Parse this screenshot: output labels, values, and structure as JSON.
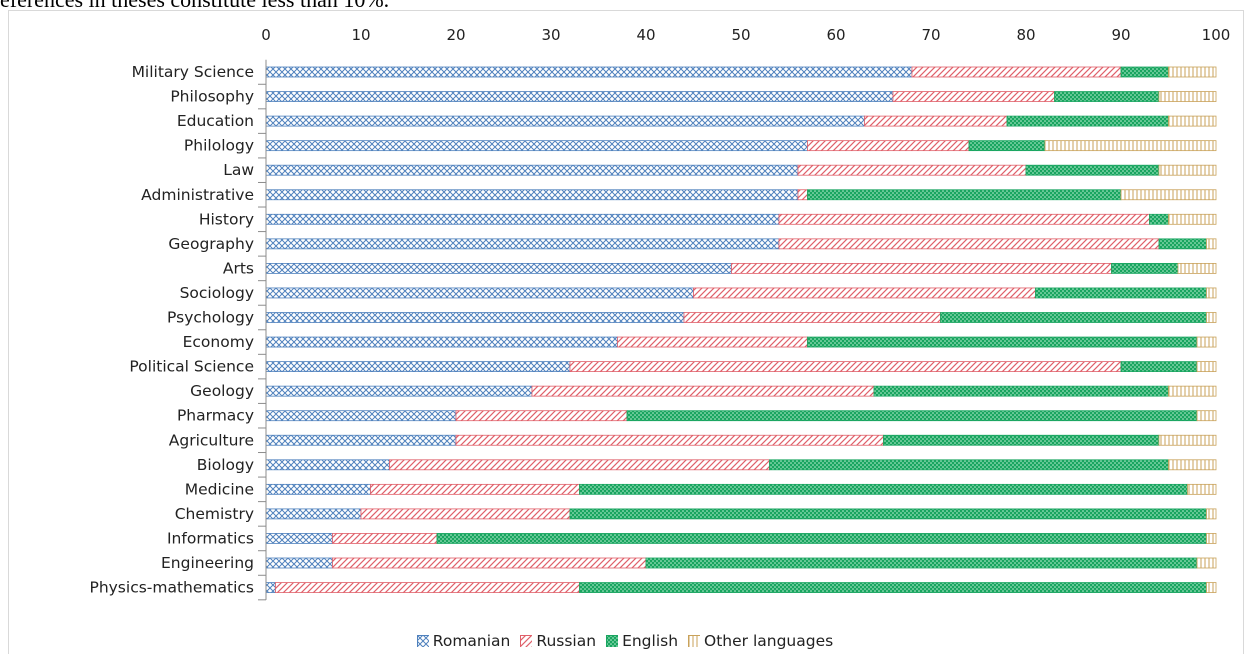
{
  "caption_fragment": "eferences in theses constitute less than 10%.",
  "colors": {
    "romanian": "#4f81bd",
    "russian": "#e0606a",
    "english": "#19a560",
    "other": "#c9a25a"
  },
  "chart_data": {
    "type": "bar",
    "orientation": "horizontal",
    "stacked": true,
    "title": "",
    "xlabel": "",
    "ylabel": "",
    "xlim": [
      0,
      100
    ],
    "x_ticks": [
      "0",
      "10",
      "20",
      "30",
      "40",
      "50",
      "60",
      "70",
      "80",
      "90",
      "100"
    ],
    "x_axis_position": "top",
    "grid": false,
    "legend_position": "bottom-center",
    "categories": [
      "Military Science",
      "Philosophy",
      "Education",
      "Philology",
      "Law",
      "Administrative",
      "History",
      "Geography",
      "Arts",
      "Sociology",
      "Psychology",
      "Economy",
      "Political Science",
      "Geology",
      "Pharmacy",
      "Agriculture",
      "Biology",
      "Medicine",
      "Chemistry",
      "Informatics",
      "Engineering",
      "Physics-mathematics"
    ],
    "series": [
      {
        "name": "Romanian",
        "pattern": "crosshatch",
        "values": [
          68,
          66,
          63,
          57,
          56,
          56,
          54,
          54,
          49,
          45,
          44,
          37,
          32,
          28,
          20,
          20,
          13,
          11,
          10,
          7,
          7,
          1
        ]
      },
      {
        "name": "Russian",
        "pattern": "diagonal",
        "values": [
          22,
          17,
          15,
          17,
          24,
          1,
          39,
          40,
          40,
          36,
          27,
          20,
          58,
          36,
          18,
          45,
          40,
          22,
          22,
          11,
          33,
          32
        ]
      },
      {
        "name": "English",
        "pattern": "dotted",
        "values": [
          5,
          11,
          17,
          8,
          14,
          33,
          2,
          5,
          7,
          18,
          28,
          41,
          8,
          31,
          60,
          29,
          42,
          64,
          67,
          81,
          58,
          66
        ]
      },
      {
        "name": "Other languages",
        "pattern": "vertical",
        "values": [
          5,
          6,
          5,
          18,
          6,
          10,
          5,
          1,
          4,
          1,
          1,
          2,
          2,
          5,
          2,
          6,
          5,
          3,
          1,
          1,
          2,
          1
        ]
      }
    ]
  }
}
